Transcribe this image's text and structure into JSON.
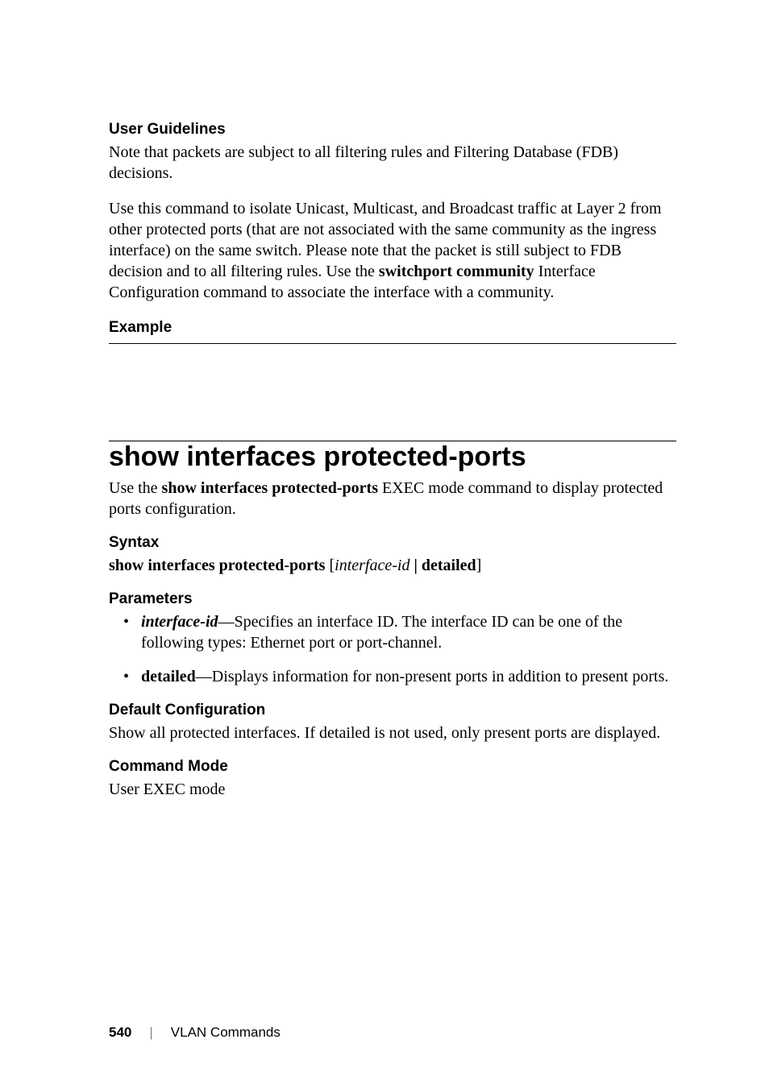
{
  "userGuidelines": {
    "heading": "User Guidelines",
    "para1": "Note that packets are subject to all filtering rules and Filtering Database (FDB) decisions.",
    "para2_a": "Use this command to isolate Unicast, Multicast, and Broadcast traffic at Layer 2 from other protected ports (that are not associated with the same community as the ingress interface) on the same switch. Please note that the packet is still subject to FDB decision and to all filtering rules. Use the ",
    "para2_bold": "switchport community",
    "para2_b": " Interface Configuration command to associate the interface with a community."
  },
  "example": {
    "heading": "Example"
  },
  "command": {
    "title": "show interfaces protected-ports",
    "intro_a": "Use the ",
    "intro_bold": "show interfaces protected-ports",
    "intro_b": " EXEC mode command to display protected ports configuration."
  },
  "syntax": {
    "heading": "Syntax",
    "cmd_bold1": "show interfaces protected-ports",
    "cmd_bracket_open": " [",
    "cmd_italic": "interface-id",
    "cmd_mid": " | ",
    "cmd_bold2": "detailed",
    "cmd_bracket_close": "]"
  },
  "parameters": {
    "heading": "Parameters",
    "item1_name": "interface-id",
    "item1_text": "—Specifies an interface ID. The interface ID can be one of the following types: Ethernet port or port-channel.",
    "item2_name": "detailed",
    "item2_text": "—Displays information for non-present ports in addition to present ports."
  },
  "defaultConfig": {
    "heading": "Default Configuration",
    "text": "Show all protected interfaces. If detailed is not used, only present ports are displayed."
  },
  "commandMode": {
    "heading": "Command Mode",
    "text": "User EXEC mode"
  },
  "footer": {
    "pageNum": "540",
    "section": "VLAN Commands"
  }
}
